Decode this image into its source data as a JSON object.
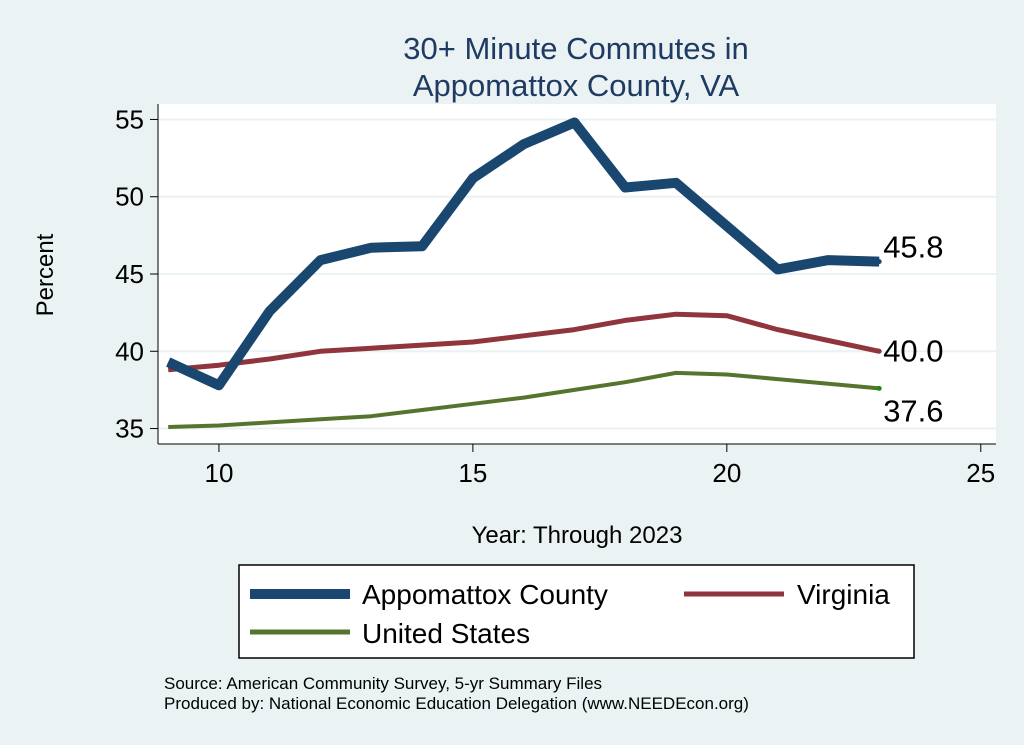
{
  "chart_data": {
    "type": "line",
    "title": [
      "30+ Minute Commutes in",
      "Appomattox County, VA"
    ],
    "xlabel": "Year: Through 2023",
    "ylabel": "Percent",
    "xlim": [
      8.8,
      25.3
    ],
    "ylim": [
      34,
      56
    ],
    "xticks": [
      10,
      15,
      20,
      25
    ],
    "yticks": [
      35,
      40,
      45,
      50,
      55
    ],
    "grid": true,
    "x": [
      9,
      10,
      11,
      12,
      13,
      14,
      15,
      16,
      17,
      18,
      19,
      20,
      21,
      22,
      23
    ],
    "series": [
      {
        "name": "Appomattox County",
        "color": "#1a476f",
        "values": [
          39.3,
          37.8,
          42.6,
          45.9,
          46.7,
          46.8,
          51.2,
          53.4,
          54.8,
          50.6,
          50.9,
          48.1,
          45.3,
          45.9,
          45.8
        ],
        "end_label": "45.8"
      },
      {
        "name": "Virginia",
        "color": "#90353b",
        "values": [
          38.8,
          39.1,
          39.5,
          40.0,
          40.2,
          40.4,
          40.6,
          41.0,
          41.4,
          42.0,
          42.4,
          42.3,
          41.4,
          40.7,
          40.0
        ],
        "end_label": "40.0"
      },
      {
        "name": "United States",
        "color": "#55752f",
        "values": [
          35.1,
          35.2,
          35.4,
          35.6,
          35.8,
          36.2,
          36.6,
          37.0,
          37.5,
          38.0,
          38.6,
          38.5,
          38.2,
          37.9,
          37.6
        ],
        "end_label": "37.6"
      }
    ],
    "legend_position": "bottom"
  },
  "footer": {
    "source": "Source: American Community Survey, 5-yr Summary Files",
    "produced": "Produced by: National Economic Education Delegation (www.NEEDEcon.org)"
  }
}
